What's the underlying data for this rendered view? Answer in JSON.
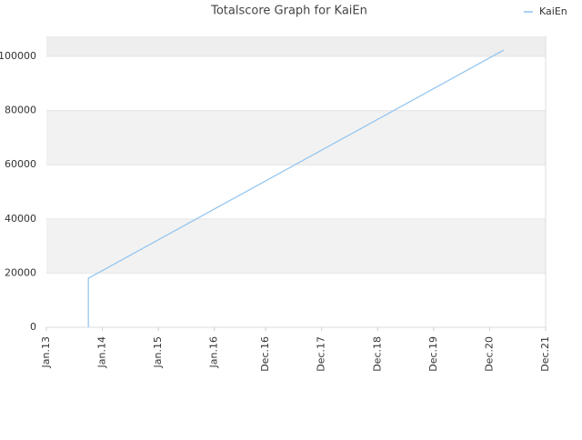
{
  "chart_data": {
    "type": "line",
    "title": "Totalscore Graph for KaiEn",
    "x": [
      "2013-10",
      "2013-10",
      "2021-03"
    ],
    "series": [
      {
        "name": "KaiEn",
        "color": "#8ec3f0",
        "values": [
          0,
          18100,
          102300
        ]
      }
    ],
    "xlim": [
      "2013-01",
      "2021-12"
    ],
    "xticks": [
      {
        "value": "2013-01",
        "label": "Jan.13"
      },
      {
        "value": "2014-01",
        "label": "Jan.14"
      },
      {
        "value": "2015-01",
        "label": "Jan.15"
      },
      {
        "value": "2016-01",
        "label": "Jan.16"
      },
      {
        "value": "2016-12",
        "label": "Dec.16"
      },
      {
        "value": "2017-12",
        "label": "Dec.17"
      },
      {
        "value": "2018-12",
        "label": "Dec.18"
      },
      {
        "value": "2019-12",
        "label": "Dec.19"
      },
      {
        "value": "2020-12",
        "label": "Dec.20"
      },
      {
        "value": "2021-12",
        "label": "Dec.21"
      }
    ],
    "ylim": [
      0,
      107400
    ],
    "yticks": [
      0,
      20000,
      40000,
      60000,
      80000,
      100000
    ],
    "legend": "top-right",
    "grid": true
  }
}
